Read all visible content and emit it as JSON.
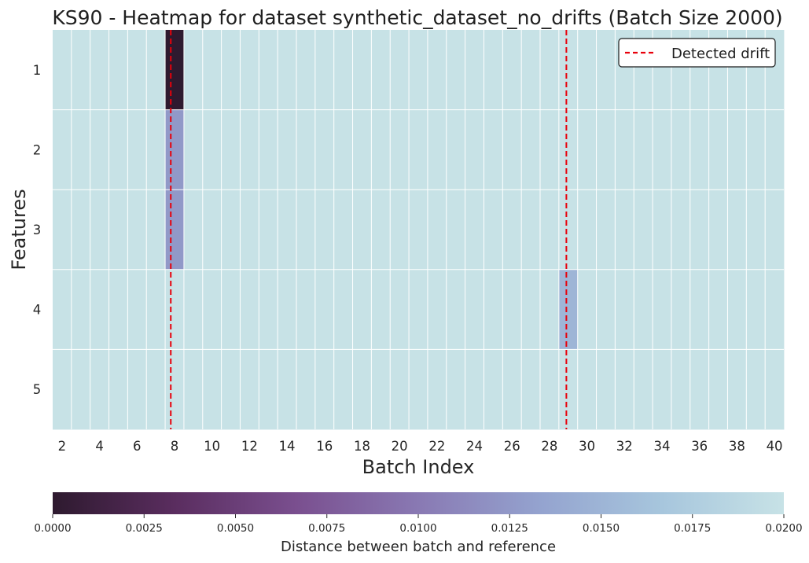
{
  "chart_data": {
    "type": "heatmap",
    "title": "KS90 - Heatmap for dataset synthetic_dataset_no_drifts (Batch Size 2000)",
    "xlabel": "Batch Index",
    "ylabel": "Features",
    "x_categories": [
      2,
      3,
      4,
      5,
      6,
      7,
      8,
      9,
      10,
      11,
      12,
      13,
      14,
      15,
      16,
      17,
      18,
      19,
      20,
      21,
      22,
      23,
      24,
      25,
      26,
      27,
      28,
      29,
      30,
      31,
      32,
      33,
      34,
      35,
      36,
      37,
      38,
      39,
      40
    ],
    "x_tick_labels": [
      "2",
      "4",
      "6",
      "8",
      "10",
      "12",
      "14",
      "16",
      "18",
      "20",
      "22",
      "24",
      "26",
      "28",
      "30",
      "32",
      "34",
      "36",
      "38",
      "40"
    ],
    "y_categories": [
      "1",
      "2",
      "3",
      "4",
      "5"
    ],
    "default_value": 0.02,
    "cells": [
      {
        "feature": "1",
        "batch": 8,
        "value": 0.0
      },
      {
        "feature": "2",
        "batch": 8,
        "value": 0.0125
      },
      {
        "feature": "3",
        "batch": 8,
        "value": 0.0125
      },
      {
        "feature": "4",
        "batch": 29,
        "value": 0.015
      }
    ],
    "drift_lines": [
      7.8,
      28.9
    ],
    "legend": {
      "label": "Detected drift",
      "position": "top-right",
      "color": "#e8000b"
    },
    "colorbar": {
      "label": "Distance between batch and reference",
      "min": 0.0,
      "max": 0.02,
      "ticks": [
        "0.0000",
        "0.0025",
        "0.0050",
        "0.0075",
        "0.0100",
        "0.0125",
        "0.0150",
        "0.0175",
        "0.0200"
      ],
      "colors": [
        "#2e1a2f",
        "#5a2d5f",
        "#7a4f8f",
        "#8979b3",
        "#94a3cf",
        "#a7c6dd",
        "#c7e2e6"
      ],
      "position": "bottom"
    }
  }
}
